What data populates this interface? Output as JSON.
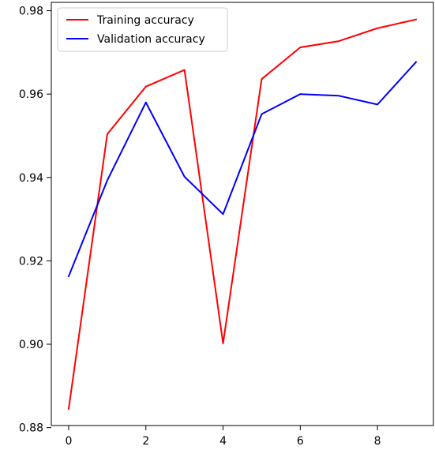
{
  "chart_data": {
    "type": "line",
    "title": "",
    "xlabel": "",
    "ylabel": "",
    "x": [
      0,
      1,
      2,
      3,
      4,
      5,
      6,
      7,
      8,
      9
    ],
    "xlim": [
      -0.45,
      9.45
    ],
    "ylim": [
      0.8805,
      0.982
    ],
    "xticks": [
      0,
      2,
      4,
      6,
      8
    ],
    "xtick_labels": [
      "0",
      "2",
      "4",
      "6",
      "8"
    ],
    "yticks": [
      0.88,
      0.9,
      0.92,
      0.94,
      0.96,
      0.98
    ],
    "ytick_labels": [
      "0.88",
      "0.90",
      "0.92",
      "0.94",
      "0.96",
      "0.98"
    ],
    "grid": false,
    "legend_position": "upper-left",
    "series": [
      {
        "name": "Training accuracy",
        "color": "#ff0000",
        "values": [
          0.8845,
          0.9504,
          0.9618,
          0.9658,
          0.9002,
          0.9636,
          0.9712,
          0.9727,
          0.9758,
          0.9779
        ]
      },
      {
        "name": "Validation accuracy",
        "color": "#0000ff",
        "values": [
          0.9163,
          0.9393,
          0.958,
          0.9402,
          0.9312,
          0.9552,
          0.96,
          0.9596,
          0.9575,
          0.9677
        ]
      }
    ]
  }
}
